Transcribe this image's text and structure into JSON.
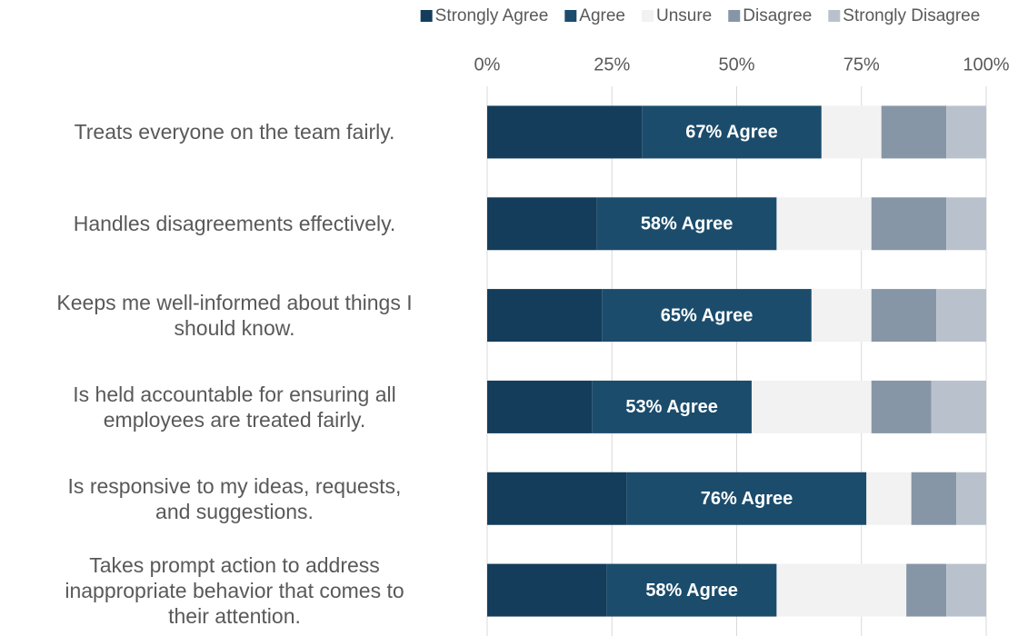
{
  "chart_data": {
    "type": "stacked-bar-horizontal",
    "categories": [
      "Treats everyone on the team fairly.",
      "Handles disagreements effectively.",
      "Keeps me well-informed about things I\nshould know.",
      "Is held accountable for ensuring all\nemployees are treated fairly.",
      "Is responsive to my ideas, requests,\nand suggestions.",
      "Takes prompt action to address\ninappropriate behavior that comes to\ntheir attention."
    ],
    "series": [
      {
        "name": "Strongly Agree",
        "color": "#143d5b",
        "values": [
          31,
          22,
          23,
          21,
          28,
          24
        ]
      },
      {
        "name": "Agree",
        "color": "#1b4c6c",
        "values": [
          36,
          36,
          42,
          32,
          48,
          34
        ]
      },
      {
        "name": "Unsure",
        "color": "#f2f2f2",
        "values": [
          12,
          19,
          12,
          24,
          9,
          26
        ]
      },
      {
        "name": "Disagree",
        "color": "#8796a7",
        "values": [
          13,
          15,
          13,
          12,
          9,
          8
        ]
      },
      {
        "name": "Strongly Disagree",
        "color": "#b9c2cc",
        "values": [
          8,
          8,
          10,
          11,
          6,
          8
        ]
      }
    ],
    "bar_labels": [
      "67% Agree",
      "58% Agree",
      "65% Agree",
      "53% Agree",
      "76% Agree",
      "58% Agree"
    ],
    "xlim": [
      0,
      100
    ],
    "xticks": [
      {
        "value": 0,
        "label": "0%"
      },
      {
        "value": 25,
        "label": "25%"
      },
      {
        "value": 50,
        "label": "50%"
      },
      {
        "value": 75,
        "label": "75%"
      },
      {
        "value": 100,
        "label": "100%"
      }
    ],
    "grid": true,
    "legend": "top"
  }
}
